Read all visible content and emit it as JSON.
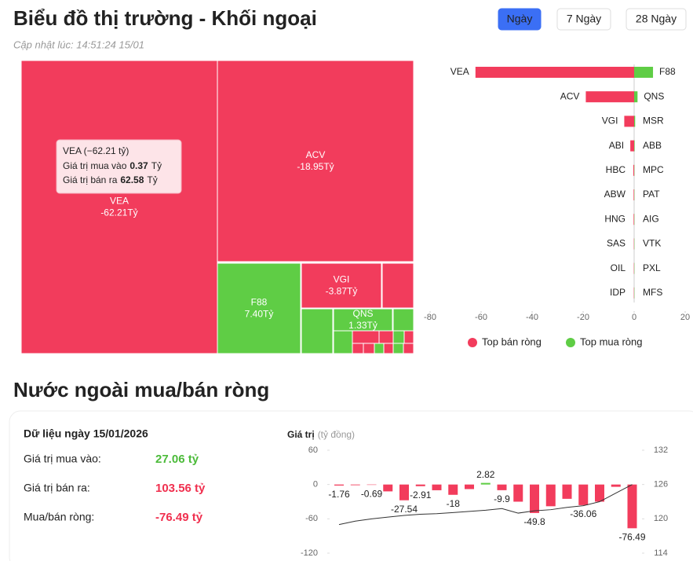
{
  "header": {
    "title": "Biểu đồ thị trường - Khối ngoại",
    "updated": "Cập nhật lúc: 14:51:24 15/01",
    "tabs": [
      "Ngày",
      "7 Ngày",
      "28 Ngày"
    ],
    "active_tab": 0
  },
  "treemap": {
    "sell_color": "#f23c5c",
    "buy_color": "#5fcd45",
    "items": [
      {
        "name": "VEA",
        "value": -62.21,
        "value_label": "-62.21Tỷ"
      },
      {
        "name": "ACV",
        "value": -18.95,
        "value_label": "-18.95Tỷ"
      },
      {
        "name": "F88",
        "value": 7.4,
        "value_label": "7.40Tỷ"
      },
      {
        "name": "VGI",
        "value": -3.87,
        "value_label": "-3.87Tỷ"
      },
      {
        "name": "QNS",
        "value": 1.33,
        "value_label": "1.33Tỷ"
      }
    ],
    "tooltip": {
      "title": "VEA (−62.21 tỷ)",
      "rows": [
        {
          "label": "Giá trị mua vào",
          "value": "0.37",
          "unit": "Tỷ"
        },
        {
          "label": "Giá trị bán ra",
          "value": "62.58",
          "unit": "Tỷ"
        }
      ]
    }
  },
  "bar_chart": {
    "type": "bar",
    "xlim": [
      -80,
      20
    ],
    "xticks": [
      -80,
      -60,
      -40,
      -20,
      0,
      20
    ],
    "legend": "bottom",
    "series": [
      {
        "name": "Top bán ròng",
        "color": "#f23c5c",
        "categories": [
          "VEA",
          "ACV",
          "VGI",
          "ABI",
          "HBC",
          "ABW",
          "HNG",
          "SAS",
          "OIL",
          "IDP"
        ],
        "values": [
          -62.21,
          -18.95,
          -3.87,
          -1.5,
          -0.3,
          -0.2,
          -0.2,
          -0.1,
          -0.1,
          -0.1
        ]
      },
      {
        "name": "Top mua ròng",
        "color": "#5fcd45",
        "categories": [
          "F88",
          "QNS",
          "MSR",
          "ABB",
          "MPC",
          "PAT",
          "AIG",
          "VTK",
          "PXL",
          "MFS"
        ],
        "values": [
          7.4,
          1.33,
          0.4,
          0.2,
          0.1,
          0.1,
          0.1,
          0.1,
          0.1,
          0.1
        ]
      }
    ]
  },
  "section": {
    "title": "Nước ngoài mua/bán ròng",
    "card_title": "Dữ liệu ngày 15/01/2026",
    "rows": [
      {
        "label": "Giá trị mua vào:",
        "value": "27.06 tỷ",
        "color": "#4cbb3a"
      },
      {
        "label": "Giá trị bán ra:",
        "value": "103.56 tỷ",
        "color": "#f0304f"
      },
      {
        "label": "Mua/bán ròng:",
        "value": "-76.49 tỷ",
        "color": "#f0304f"
      }
    ]
  },
  "combo_chart": {
    "type": "bar",
    "y_label": "Giá trị",
    "y_unit": "(tỷ đồng)",
    "ylim": [
      -120,
      60
    ],
    "yticks": [
      60,
      0,
      -60,
      -120
    ],
    "y2lim": [
      114,
      132
    ],
    "y2ticks": [
      132,
      126,
      120,
      114
    ],
    "series": [
      {
        "type": "bar",
        "color": "#f23c5c",
        "positive_color": "#5fcd45",
        "values": [
          -1.76,
          -1.2,
          -0.69,
          -12,
          -27.54,
          -2.91,
          -10,
          -18,
          -8,
          2.82,
          -9.9,
          -30,
          -49.8,
          -38,
          -25,
          -36.06,
          -30,
          -4,
          -76.49
        ],
        "value_labels": [
          "-1.76",
          null,
          "-0.69",
          null,
          "-27.54",
          "-2.91",
          null,
          "-18",
          null,
          "2.82",
          "-9.9",
          null,
          "-49.8",
          null,
          null,
          "-36.06",
          null,
          null,
          "-76.49"
        ]
      },
      {
        "type": "line",
        "axis": "y2",
        "color": "#333333",
        "values": [
          119.0,
          119.6,
          120.0,
          120.3,
          120.6,
          120.8,
          120.9,
          121.1,
          121.3,
          121.5,
          121.8,
          121.0,
          121.4,
          121.6,
          122.0,
          122.3,
          123.0,
          124.5,
          126.0
        ]
      }
    ]
  }
}
